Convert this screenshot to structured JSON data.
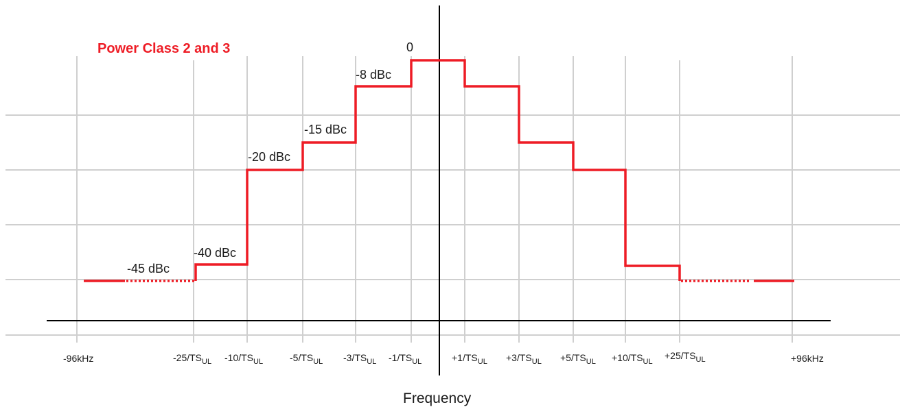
{
  "title": "Power Class 2 and 3",
  "xlabel": "Frequency",
  "zero_label": "0",
  "colors": {
    "mask": "#ee1c25",
    "grid": "#cfcfcf",
    "axis": "#000000"
  },
  "levels": [
    "-8 dBc",
    "-15 dBc",
    "-20 dBc",
    "-40 dBc",
    "-45 dBc"
  ],
  "ticks": [
    {
      "main": "-96kHz",
      "sub": ""
    },
    {
      "main": "-25/TS",
      "sub": "UL"
    },
    {
      "main": "-10/TS",
      "sub": "UL"
    },
    {
      "main": "-5/TS",
      "sub": "UL"
    },
    {
      "main": "-3/TS",
      "sub": "UL"
    },
    {
      "main": "-1/TS",
      "sub": "UL"
    },
    {
      "main": "+1/TS",
      "sub": "UL"
    },
    {
      "main": "+3/TS",
      "sub": "UL"
    },
    {
      "main": "+5/TS",
      "sub": "UL"
    },
    {
      "main": "+10/TS",
      "sub": "UL"
    },
    {
      "main": "+25/TS",
      "sub": "UL"
    },
    {
      "main": "+96kHz",
      "sub": ""
    }
  ]
}
